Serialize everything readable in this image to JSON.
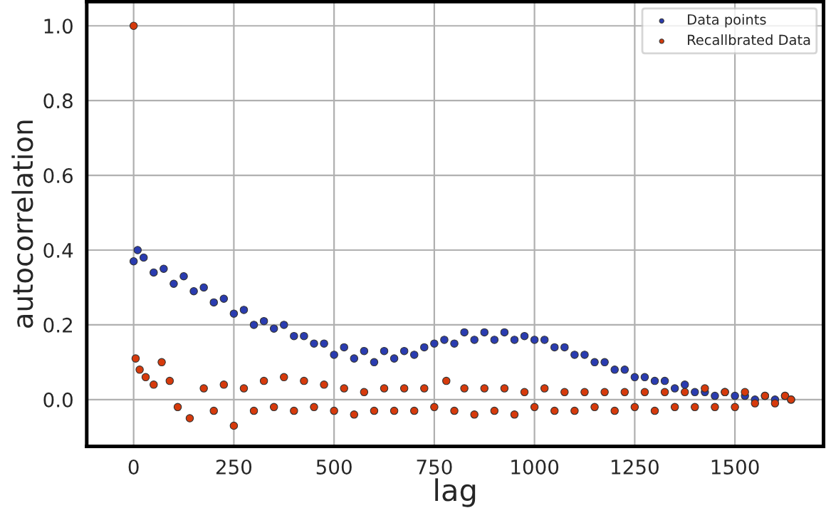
{
  "chart_data": {
    "type": "scatter",
    "xlabel": "lag",
    "ylabel": "autocorrelation",
    "xlim": [
      -117,
      1721
    ],
    "ylim": [
      -0.125,
      1.065
    ],
    "xticks": [
      0,
      250,
      500,
      750,
      1000,
      1250,
      1500
    ],
    "yticks": [
      {
        "value": 0,
        "label": "0.0"
      },
      {
        "value": 0.2,
        "label": "0.2"
      },
      {
        "value": 0.4,
        "label": "0.4"
      },
      {
        "value": 0.6,
        "label": "0.6"
      },
      {
        "value": 0.8,
        "label": "0.8"
      },
      {
        "value": 1.0,
        "label": "1.0"
      }
    ],
    "grid": true,
    "legend": "top right",
    "marker": "circle",
    "series": [
      {
        "name": "Data points",
        "color": "#2a3cb0",
        "x": [
          0,
          10,
          25,
          50,
          75,
          100,
          125,
          150,
          175,
          200,
          225,
          250,
          275,
          300,
          325,
          350,
          375,
          400,
          425,
          450,
          475,
          500,
          525,
          550,
          575,
          600,
          625,
          650,
          675,
          700,
          725,
          750,
          775,
          800,
          825,
          850,
          875,
          900,
          925,
          950,
          975,
          1000,
          1025,
          1050,
          1075,
          1100,
          1125,
          1150,
          1175,
          1200,
          1225,
          1250,
          1275,
          1300,
          1325,
          1350,
          1375,
          1400,
          1425,
          1450,
          1475,
          1500,
          1525,
          1550,
          1575,
          1600,
          1625,
          1640
        ],
        "values": [
          0.37,
          0.4,
          0.38,
          0.34,
          0.35,
          0.31,
          0.33,
          0.29,
          0.3,
          0.26,
          0.27,
          0.23,
          0.24,
          0.2,
          0.21,
          0.19,
          0.2,
          0.17,
          0.17,
          0.15,
          0.15,
          0.12,
          0.14,
          0.11,
          0.13,
          0.1,
          0.13,
          0.11,
          0.13,
          0.12,
          0.14,
          0.15,
          0.16,
          0.15,
          0.18,
          0.16,
          0.18,
          0.16,
          0.18,
          0.16,
          0.17,
          0.16,
          0.16,
          0.14,
          0.14,
          0.12,
          0.12,
          0.1,
          0.1,
          0.08,
          0.08,
          0.06,
          0.06,
          0.05,
          0.05,
          0.03,
          0.04,
          0.02,
          0.02,
          0.01,
          0.02,
          0.01,
          0.01,
          0.0,
          0.01,
          0.0,
          0.01,
          0.0
        ]
      },
      {
        "name": "Recallbrated Data",
        "color": "#d63a0c",
        "x": [
          0,
          5,
          15,
          30,
          50,
          70,
          90,
          110,
          140,
          175,
          200,
          225,
          250,
          275,
          300,
          325,
          350,
          375,
          400,
          425,
          450,
          475,
          500,
          525,
          550,
          575,
          600,
          625,
          650,
          675,
          700,
          725,
          750,
          780,
          800,
          825,
          850,
          875,
          900,
          925,
          950,
          975,
          1000,
          1025,
          1050,
          1075,
          1100,
          1125,
          1150,
          1175,
          1200,
          1225,
          1250,
          1275,
          1300,
          1325,
          1350,
          1375,
          1400,
          1425,
          1450,
          1475,
          1500,
          1525,
          1550,
          1575,
          1600,
          1625,
          1640
        ],
        "values": [
          1.0,
          0.11,
          0.08,
          0.06,
          0.04,
          0.1,
          0.05,
          -0.02,
          -0.05,
          0.03,
          -0.03,
          0.04,
          -0.07,
          0.03,
          -0.03,
          0.05,
          -0.02,
          0.06,
          -0.03,
          0.05,
          -0.02,
          0.04,
          -0.03,
          0.03,
          -0.04,
          0.02,
          -0.03,
          0.03,
          -0.03,
          0.03,
          -0.03,
          0.03,
          -0.02,
          0.05,
          -0.03,
          0.03,
          -0.04,
          0.03,
          -0.03,
          0.03,
          -0.04,
          0.02,
          -0.02,
          0.03,
          -0.03,
          0.02,
          -0.03,
          0.02,
          -0.02,
          0.02,
          -0.03,
          0.02,
          -0.02,
          0.02,
          -0.03,
          0.02,
          -0.02,
          0.02,
          -0.02,
          0.03,
          -0.02,
          0.02,
          -0.02,
          0.02,
          -0.01,
          0.01,
          -0.01,
          0.01,
          0.0
        ]
      }
    ]
  }
}
